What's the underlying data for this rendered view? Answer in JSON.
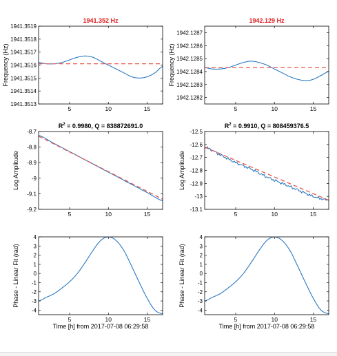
{
  "colors": {
    "data_line": "#2a78c2",
    "fit_line": "#e8554a",
    "title_red": "#e02020",
    "axis": "#000000"
  },
  "xlabel_bottom": "Time [h] from 2017-07-08 06:29:58",
  "chart_data": [
    {
      "id": "freq-left",
      "type": "line",
      "title": "1941.352 Hz",
      "title_color": "red",
      "xlabel": "",
      "ylabel": "Frequency (Hz)",
      "xlim": [
        1,
        17
      ],
      "ylim": [
        1941.3513,
        1941.3519
      ],
      "xticks": [
        5,
        10,
        15
      ],
      "yticks": [
        1941.3513,
        1941.3514,
        1941.3515,
        1941.3516,
        1941.3517,
        1941.3518,
        1941.3519
      ],
      "ytick_labels": [
        "1941.3513",
        "1941.3514",
        "1941.3515",
        "1941.3516",
        "1941.3517",
        "1941.3518",
        "1941.3519"
      ],
      "series": [
        {
          "style": "solid-blue",
          "x": [
            1,
            2,
            3,
            4,
            5,
            6,
            7,
            8,
            9,
            10,
            11,
            12,
            13,
            14,
            15,
            16,
            17
          ],
          "y": [
            1941.35162,
            1941.35161,
            1941.35161,
            1941.35162,
            1941.35164,
            1941.35166,
            1941.35167,
            1941.35166,
            1941.35163,
            1941.3516,
            1941.35157,
            1941.35154,
            1941.35151,
            1941.3515,
            1941.35151,
            1941.35154,
            1941.35159
          ]
        },
        {
          "style": "dashed-red",
          "x": [
            1,
            17
          ],
          "y": [
            1941.35161,
            1941.35161
          ]
        }
      ]
    },
    {
      "id": "freq-right",
      "type": "line",
      "title": "1942.129 Hz",
      "title_color": "red",
      "xlabel": "",
      "ylabel": "Frequency (Hz)",
      "xlim": [
        1,
        17
      ],
      "ylim": [
        1942.12815,
        1942.12875
      ],
      "xticks": [
        5,
        10,
        15
      ],
      "yticks": [
        1942.1282,
        1942.1283,
        1942.1284,
        1942.1285,
        1942.1286,
        1942.1287
      ],
      "ytick_labels": [
        "1942.1282",
        "1942.1283",
        "1942.1284",
        "1942.1285",
        "1942.1286",
        "1942.1287"
      ],
      "series": [
        {
          "style": "solid-blue",
          "x": [
            1,
            2,
            3,
            4,
            5,
            6,
            7,
            8,
            9,
            10,
            11,
            12,
            13,
            14,
            15,
            16,
            17
          ],
          "y": [
            1942.12843,
            1942.12842,
            1942.12842,
            1942.12843,
            1942.12845,
            1942.12847,
            1942.12848,
            1942.12847,
            1942.12845,
            1942.12842,
            1942.12839,
            1942.12836,
            1942.12834,
            1942.12833,
            1942.12834,
            1942.12837,
            1942.1284
          ]
        },
        {
          "style": "dashed-red",
          "x": [
            1,
            17
          ],
          "y": [
            1942.12843,
            1942.12843
          ]
        }
      ]
    },
    {
      "id": "amp-left",
      "type": "line",
      "title_prefix": "R",
      "title_sup": "2",
      "title_rest": " = 0.9980, Q = 838872691.0",
      "xlabel": "",
      "ylabel": "Log Amplitude",
      "xlim": [
        1,
        17
      ],
      "ylim": [
        -9.2,
        -8.7
      ],
      "xticks": [
        5,
        10,
        15
      ],
      "yticks": [
        -9.2,
        -9.1,
        -9.0,
        -8.9,
        -8.8,
        -8.7
      ],
      "ytick_labels": [
        "-9.2",
        "-9.1",
        "-9",
        "-8.9",
        "-8.8",
        "-8.7"
      ],
      "series": [
        {
          "style": "solid-blue",
          "x": [
            1,
            3,
            5,
            7,
            9,
            11,
            13,
            15,
            17
          ],
          "y": [
            -8.725,
            -8.777,
            -8.829,
            -8.882,
            -8.935,
            -8.987,
            -9.04,
            -9.092,
            -9.145
          ]
        },
        {
          "style": "dashed-red",
          "x": [
            1,
            17
          ],
          "y": [
            -8.73,
            -9.135
          ]
        }
      ]
    },
    {
      "id": "amp-right",
      "type": "line",
      "title_prefix": "R",
      "title_sup": "2",
      "title_rest": " = 0.9910, Q = 808459376.5",
      "xlabel": "",
      "ylabel": "Log Amplitude",
      "xlim": [
        1,
        17
      ],
      "ylim": [
        -13.1,
        -12.5
      ],
      "xticks": [
        5,
        10,
        15
      ],
      "yticks": [
        -13.1,
        -13.0,
        -12.9,
        -12.8,
        -12.7,
        -12.6,
        -12.5
      ],
      "ytick_labels": [
        "-13.1",
        "-13",
        "-12.9",
        "-12.8",
        "-12.7",
        "-12.6",
        "-12.5"
      ],
      "series": [
        {
          "style": "solid-blue-noisy",
          "x": [
            1,
            3,
            5,
            7,
            9,
            11,
            13,
            15,
            17
          ],
          "y": [
            -12.62,
            -12.68,
            -12.74,
            -12.79,
            -12.85,
            -12.9,
            -12.95,
            -13.0,
            -13.03
          ]
        },
        {
          "style": "dashed-red",
          "x": [
            1,
            17
          ],
          "y": [
            -12.62,
            -13.03
          ]
        }
      ]
    },
    {
      "id": "phase-left",
      "type": "line",
      "title": "",
      "xlabel": "Time [h] from 2017-07-08 06:29:58",
      "ylabel": "Phase - Linear Fit (rad)",
      "xlim": [
        1,
        17
      ],
      "ylim": [
        -4.5,
        4
      ],
      "xticks": [
        5,
        10,
        15
      ],
      "yticks": [
        -4,
        -3,
        -2,
        -1,
        0,
        1,
        2,
        3,
        4
      ],
      "ytick_labels": [
        "-4",
        "-3",
        "-2",
        "-1",
        "0",
        "1",
        "2",
        "3",
        "4"
      ],
      "series": [
        {
          "style": "solid-blue",
          "x": [
            1,
            2,
            3,
            4,
            5,
            6,
            7,
            8,
            9,
            10,
            11,
            12,
            13,
            14,
            15,
            16,
            17
          ],
          "y": [
            -3.0,
            -2.6,
            -2.2,
            -1.6,
            -0.9,
            0.0,
            1.2,
            2.5,
            3.6,
            4.0,
            3.6,
            2.5,
            0.8,
            -1.0,
            -2.7,
            -4.0,
            -4.4
          ]
        }
      ]
    },
    {
      "id": "phase-right",
      "type": "line",
      "title": "",
      "xlabel": "Time [h] from 2017-07-08 06:29:58",
      "ylabel": "Phase - Linear Fit (rad)",
      "xlim": [
        1,
        17
      ],
      "ylim": [
        -4.5,
        4
      ],
      "xticks": [
        5,
        10,
        15
      ],
      "yticks": [
        -4,
        -3,
        -2,
        -1,
        0,
        1,
        2,
        3,
        4
      ],
      "ytick_labels": [
        "-4",
        "-3",
        "-2",
        "-1",
        "0",
        "1",
        "2",
        "3",
        "4"
      ],
      "series": [
        {
          "style": "solid-blue",
          "x": [
            1,
            2,
            3,
            4,
            5,
            6,
            7,
            8,
            9,
            10,
            11,
            12,
            13,
            14,
            15,
            16,
            17
          ],
          "y": [
            -3.0,
            -2.6,
            -2.2,
            -1.6,
            -0.9,
            0.0,
            1.2,
            2.5,
            3.6,
            4.0,
            3.6,
            2.5,
            0.8,
            -1.0,
            -2.7,
            -4.0,
            -4.4
          ]
        }
      ]
    }
  ]
}
